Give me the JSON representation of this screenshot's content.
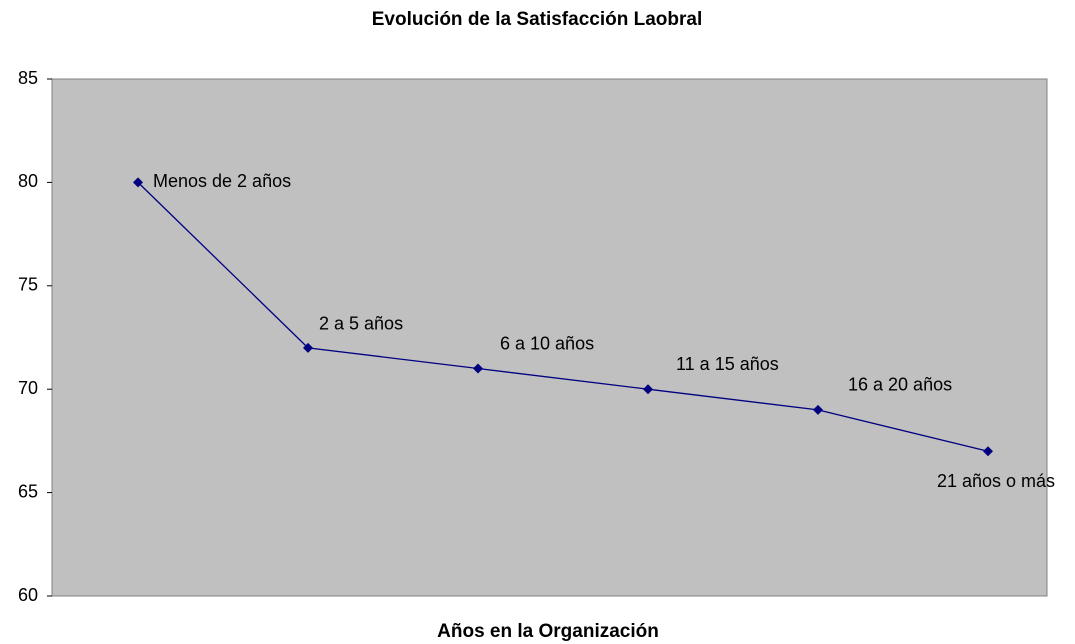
{
  "chart_data": {
    "type": "line",
    "title": "Evolución de la Satisfacción Laobral",
    "x_label": "Años en la Organización",
    "categories": [
      "Menos de 2 años",
      "2 a 5 años",
      "6 a 10 años",
      "11 a 15 años",
      "16 a 20 años",
      "21 años o más"
    ],
    "values": [
      80,
      72,
      71,
      70,
      69,
      67
    ],
    "color": "#000080",
    "ylim": [
      60,
      85
    ],
    "yticks": [
      60,
      65,
      70,
      75,
      80,
      85
    ],
    "grid": false
  }
}
